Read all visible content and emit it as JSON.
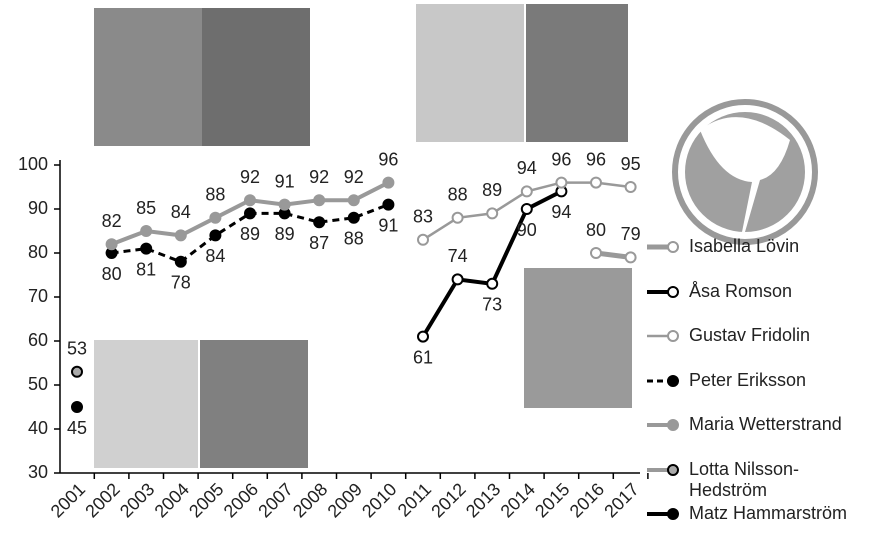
{
  "chart_data": {
    "type": "line",
    "categories": [
      "2001",
      "2002",
      "2003",
      "2004",
      "2005",
      "2006",
      "2007",
      "2008",
      "2009",
      "2010",
      "2011",
      "2012",
      "2013",
      "2014",
      "2015",
      "2016",
      "2017"
    ],
    "ylim": [
      30,
      100
    ],
    "yticks": [
      30,
      40,
      50,
      60,
      70,
      80,
      90,
      100
    ],
    "series": [
      {
        "name": "Isabella Lövin",
        "color": "#999999",
        "marker_fill": "#ffffff",
        "line_width": 5,
        "dashed": false,
        "values": [
          null,
          null,
          null,
          null,
          null,
          null,
          null,
          null,
          null,
          null,
          null,
          null,
          null,
          null,
          null,
          80,
          79
        ]
      },
      {
        "name": "Åsa Romson",
        "color": "#000000",
        "marker_fill": "#ffffff",
        "line_width": 4,
        "dashed": false,
        "values": [
          null,
          null,
          null,
          null,
          null,
          null,
          null,
          null,
          null,
          null,
          61,
          74,
          73,
          90,
          94,
          null,
          null
        ]
      },
      {
        "name": "Gustav Fridolin",
        "color": "#999999",
        "marker_fill": "#ffffff",
        "line_width": 2.5,
        "dashed": false,
        "values": [
          null,
          null,
          null,
          null,
          null,
          null,
          null,
          null,
          null,
          null,
          83,
          88,
          89,
          94,
          96,
          96,
          95
        ]
      },
      {
        "name": "Peter Eriksson",
        "color": "#000000",
        "marker_fill": "#000000",
        "line_width": 3,
        "dashed": true,
        "values": [
          null,
          80,
          81,
          78,
          84,
          89,
          89,
          87,
          88,
          91,
          null,
          null,
          null,
          null,
          null,
          null,
          null
        ]
      },
      {
        "name": "Maria Wetterstrand",
        "color": "#999999",
        "marker_fill": "#999999",
        "line_width": 4,
        "dashed": false,
        "values": [
          null,
          82,
          85,
          84,
          88,
          92,
          91,
          92,
          92,
          96,
          null,
          null,
          null,
          null,
          null,
          null,
          null
        ]
      },
      {
        "name": "Lotta Nilsson-Hedström",
        "color": "#999999",
        "marker_fill": "#aaaaaa",
        "line_width": 4,
        "dashed": false,
        "values": [
          53,
          null,
          null,
          null,
          null,
          null,
          null,
          null,
          null,
          null,
          null,
          null,
          null,
          null,
          null,
          null,
          null
        ]
      },
      {
        "name": "Matz Hammarström",
        "color": "#000000",
        "marker_fill": "#000000",
        "line_width": 4,
        "dashed": false,
        "values": [
          45,
          null,
          null,
          null,
          null,
          null,
          null,
          null,
          null,
          null,
          null,
          null,
          null,
          null,
          null,
          null,
          null
        ]
      }
    ]
  }
}
